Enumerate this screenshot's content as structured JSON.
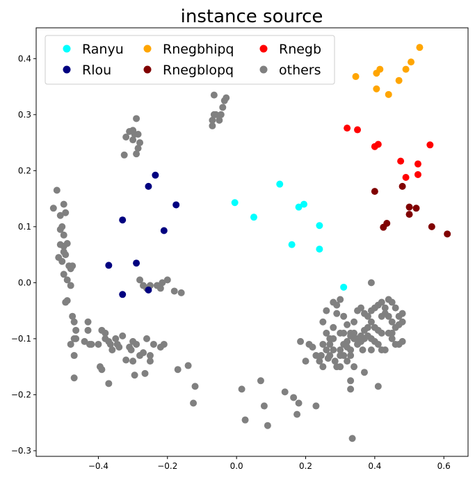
{
  "chart_data": {
    "type": "scatter",
    "title": "instance source",
    "xlabel": "",
    "ylabel": "",
    "xlim": [
      -0.58,
      0.67
    ],
    "ylim": [
      -0.31,
      0.455
    ],
    "xticks": [
      -0.4,
      -0.2,
      0.0,
      0.2,
      0.4,
      0.6
    ],
    "xtick_labels": [
      "−0.4",
      "−0.2",
      "0.0",
      "0.2",
      "0.4",
      "0.6"
    ],
    "yticks": [
      -0.3,
      -0.2,
      -0.1,
      0.0,
      0.1,
      0.2,
      0.3,
      0.4
    ],
    "ytick_labels": [
      "−0.3",
      "−0.2",
      "−0.1",
      "0.0",
      "0.1",
      "0.2",
      "0.3",
      "0.4"
    ],
    "grid": false,
    "legend_position": "top-left",
    "legend_columns": 3,
    "series": [
      {
        "name": "others",
        "color": "#808080",
        "points": [
          [
            -0.53,
            0.133
          ],
          [
            -0.52,
            0.165
          ],
          [
            -0.51,
            0.12
          ],
          [
            -0.505,
            0.1
          ],
          [
            -0.5,
            0.14
          ],
          [
            -0.495,
            0.125
          ],
          [
            -0.51,
            0.095
          ],
          [
            -0.5,
            0.085
          ],
          [
            -0.51,
            0.068
          ],
          [
            -0.5,
            0.065
          ],
          [
            -0.49,
            0.07
          ],
          [
            -0.515,
            0.045
          ],
          [
            -0.505,
            0.038
          ],
          [
            -0.5,
            0.055
          ],
          [
            -0.495,
            0.05
          ],
          [
            -0.485,
            0.03
          ],
          [
            -0.48,
            0.025
          ],
          [
            -0.475,
            0.03
          ],
          [
            -0.5,
            0.015
          ],
          [
            -0.49,
            0.005
          ],
          [
            -0.48,
            -0.005
          ],
          [
            -0.495,
            -0.035
          ],
          [
            -0.49,
            -0.032
          ],
          [
            -0.475,
            -0.06
          ],
          [
            -0.47,
            -0.07
          ],
          [
            -0.465,
            -0.085
          ],
          [
            -0.47,
            -0.1
          ],
          [
            -0.48,
            -0.11
          ],
          [
            -0.47,
            -0.13
          ],
          [
            -0.465,
            -0.1
          ],
          [
            -0.43,
            -0.07
          ],
          [
            -0.43,
            -0.085
          ],
          [
            -0.44,
            -0.105
          ],
          [
            -0.425,
            -0.11
          ],
          [
            -0.42,
            -0.11
          ],
          [
            -0.4,
            -0.11
          ],
          [
            -0.39,
            -0.085
          ],
          [
            -0.38,
            -0.09
          ],
          [
            -0.38,
            -0.1
          ],
          [
            -0.37,
            -0.105
          ],
          [
            -0.365,
            -0.11
          ],
          [
            -0.36,
            -0.12
          ],
          [
            -0.35,
            -0.1
          ],
          [
            -0.345,
            -0.11
          ],
          [
            -0.34,
            -0.115
          ],
          [
            -0.33,
            -0.095
          ],
          [
            -0.31,
            -0.115
          ],
          [
            -0.305,
            -0.12
          ],
          [
            -0.3,
            -0.105
          ],
          [
            -0.29,
            -0.11
          ],
          [
            -0.28,
            -0.13
          ],
          [
            -0.27,
            -0.125
          ],
          [
            -0.26,
            -0.1
          ],
          [
            -0.25,
            -0.13
          ],
          [
            -0.24,
            -0.11
          ],
          [
            -0.22,
            -0.115
          ],
          [
            -0.21,
            -0.11
          ],
          [
            -0.32,
            -0.138
          ],
          [
            -0.3,
            -0.14
          ],
          [
            -0.25,
            -0.14
          ],
          [
            -0.395,
            -0.15
          ],
          [
            -0.39,
            -0.155
          ],
          [
            -0.37,
            -0.18
          ],
          [
            -0.265,
            -0.162
          ],
          [
            -0.295,
            -0.165
          ],
          [
            -0.47,
            -0.17
          ],
          [
            -0.325,
            0.228
          ],
          [
            -0.29,
            0.23
          ],
          [
            -0.3,
            0.255
          ],
          [
            -0.295,
            0.265
          ],
          [
            -0.285,
            0.265
          ],
          [
            -0.3,
            0.272
          ],
          [
            -0.31,
            0.27
          ],
          [
            -0.32,
            0.26
          ],
          [
            -0.28,
            0.25
          ],
          [
            -0.285,
            0.24
          ],
          [
            -0.29,
            0.293
          ],
          [
            -0.28,
            0.005
          ],
          [
            -0.27,
            -0.005
          ],
          [
            -0.26,
            -0.01
          ],
          [
            -0.25,
            -0.005
          ],
          [
            -0.23,
            -0.005
          ],
          [
            -0.22,
            -0.01
          ],
          [
            -0.215,
            0.0
          ],
          [
            -0.2,
            0.005
          ],
          [
            -0.18,
            -0.015
          ],
          [
            -0.16,
            -0.018
          ],
          [
            -0.17,
            -0.155
          ],
          [
            -0.14,
            -0.148
          ],
          [
            -0.12,
            -0.185
          ],
          [
            -0.125,
            -0.215
          ],
          [
            -0.07,
            0.29
          ],
          [
            -0.065,
            0.3
          ],
          [
            -0.07,
            0.28
          ],
          [
            -0.06,
            0.3
          ],
          [
            -0.045,
            0.3
          ],
          [
            -0.04,
            0.313
          ],
          [
            -0.035,
            0.325
          ],
          [
            -0.03,
            0.33
          ],
          [
            -0.05,
            0.29
          ],
          [
            -0.065,
            0.335
          ],
          [
            0.015,
            -0.19
          ],
          [
            0.025,
            -0.245
          ],
          [
            0.07,
            -0.175
          ],
          [
            0.08,
            -0.22
          ],
          [
            0.09,
            -0.255
          ],
          [
            0.14,
            -0.195
          ],
          [
            0.165,
            -0.205
          ],
          [
            0.18,
            -0.215
          ],
          [
            0.175,
            -0.235
          ],
          [
            0.23,
            -0.22
          ],
          [
            0.185,
            -0.105
          ],
          [
            0.21,
            -0.11
          ],
          [
            0.22,
            -0.115
          ],
          [
            0.2,
            -0.14
          ],
          [
            0.23,
            -0.13
          ],
          [
            0.245,
            -0.13
          ],
          [
            0.25,
            -0.11
          ],
          [
            0.24,
            -0.14
          ],
          [
            0.25,
            -0.15
          ],
          [
            0.26,
            -0.12
          ],
          [
            0.27,
            -0.11
          ],
          [
            0.27,
            -0.13
          ],
          [
            0.28,
            -0.1
          ],
          [
            0.285,
            -0.14
          ],
          [
            0.29,
            -0.15
          ],
          [
            0.3,
            -0.12
          ],
          [
            0.31,
            -0.09
          ],
          [
            0.3,
            -0.13
          ],
          [
            0.31,
            -0.13
          ],
          [
            0.3,
            -0.15
          ],
          [
            0.32,
            -0.14
          ],
          [
            0.33,
            -0.13
          ],
          [
            0.32,
            -0.115
          ],
          [
            0.33,
            -0.12
          ],
          [
            0.34,
            -0.09
          ],
          [
            0.35,
            -0.11
          ],
          [
            0.36,
            -0.095
          ],
          [
            0.37,
            -0.085
          ],
          [
            0.38,
            -0.08
          ],
          [
            0.39,
            -0.07
          ],
          [
            0.4,
            -0.08
          ],
          [
            0.41,
            -0.085
          ],
          [
            0.42,
            -0.06
          ],
          [
            0.43,
            -0.055
          ],
          [
            0.42,
            -0.09
          ],
          [
            0.44,
            -0.09
          ],
          [
            0.45,
            -0.1
          ],
          [
            0.46,
            -0.11
          ],
          [
            0.43,
            -0.12
          ],
          [
            0.41,
            -0.11
          ],
          [
            0.4,
            -0.105
          ],
          [
            0.39,
            -0.1
          ],
          [
            0.38,
            -0.095
          ],
          [
            0.37,
            -0.1
          ],
          [
            0.36,
            -0.105
          ],
          [
            0.35,
            -0.1
          ],
          [
            0.34,
            -0.1
          ],
          [
            0.33,
            -0.09
          ],
          [
            0.32,
            -0.075
          ],
          [
            0.31,
            -0.06
          ],
          [
            0.29,
            -0.04
          ],
          [
            0.28,
            -0.035
          ],
          [
            0.29,
            -0.055
          ],
          [
            0.28,
            -0.08
          ],
          [
            0.3,
            -0.09
          ],
          [
            0.31,
            -0.11
          ],
          [
            0.32,
            -0.105
          ],
          [
            0.33,
            -0.095
          ],
          [
            0.34,
            -0.07
          ],
          [
            0.35,
            -0.05
          ],
          [
            0.36,
            -0.045
          ],
          [
            0.37,
            -0.055
          ],
          [
            0.38,
            -0.06
          ],
          [
            0.39,
            -0.05
          ],
          [
            0.4,
            -0.045
          ],
          [
            0.41,
            -0.04
          ],
          [
            0.42,
            -0.035
          ],
          [
            0.43,
            -0.045
          ],
          [
            0.44,
            -0.06
          ],
          [
            0.45,
            -0.07
          ],
          [
            0.46,
            -0.08
          ],
          [
            0.47,
            -0.075
          ],
          [
            0.48,
            -0.07
          ],
          [
            0.47,
            -0.06
          ],
          [
            0.48,
            -0.055
          ],
          [
            0.44,
            -0.03
          ],
          [
            0.45,
            -0.035
          ],
          [
            0.46,
            -0.045
          ],
          [
            0.39,
            0.0
          ],
          [
            0.3,
            -0.03
          ],
          [
            0.26,
            -0.05
          ],
          [
            0.25,
            -0.07
          ],
          [
            0.26,
            -0.09
          ],
          [
            0.27,
            -0.1
          ],
          [
            0.42,
            -0.12
          ],
          [
            0.37,
            -0.16
          ],
          [
            0.33,
            -0.175
          ],
          [
            0.33,
            -0.19
          ],
          [
            0.34,
            -0.15
          ],
          [
            0.28,
            -0.12
          ],
          [
            0.265,
            -0.135
          ],
          [
            0.47,
            -0.11
          ],
          [
            0.48,
            -0.105
          ],
          [
            0.41,
            -0.185
          ],
          [
            0.335,
            -0.278
          ],
          [
            0.45,
            -0.09
          ],
          [
            0.39,
            -0.12
          ],
          [
            0.365,
            -0.12
          ]
        ]
      },
      {
        "name": "Ranyu",
        "color": "#00ffff",
        "points": [
          [
            -0.005,
            0.143
          ],
          [
            0.05,
            0.117
          ],
          [
            0.125,
            0.176
          ],
          [
            0.18,
            0.135
          ],
          [
            0.195,
            0.14
          ],
          [
            0.24,
            0.102
          ],
          [
            0.16,
            0.068
          ],
          [
            0.24,
            0.06
          ],
          [
            0.31,
            -0.008
          ]
        ]
      },
      {
        "name": "Rlou",
        "color": "#000080",
        "points": [
          [
            -0.235,
            0.192
          ],
          [
            -0.255,
            0.172
          ],
          [
            -0.175,
            0.139
          ],
          [
            -0.33,
            0.112
          ],
          [
            -0.21,
            0.093
          ],
          [
            -0.37,
            0.031
          ],
          [
            -0.29,
            0.035
          ],
          [
            -0.33,
            -0.021
          ],
          [
            -0.255,
            -0.013
          ]
        ]
      },
      {
        "name": "Rnegbhipq",
        "color": "#ffa500",
        "points": [
          [
            0.53,
            0.42
          ],
          [
            0.505,
            0.394
          ],
          [
            0.49,
            0.381
          ],
          [
            0.415,
            0.381
          ],
          [
            0.405,
            0.374
          ],
          [
            0.345,
            0.368
          ],
          [
            0.47,
            0.361
          ],
          [
            0.405,
            0.346
          ],
          [
            0.44,
            0.336
          ]
        ]
      },
      {
        "name": "Rnegblopq",
        "color": "#800000",
        "points": [
          [
            0.4,
            0.163
          ],
          [
            0.48,
            0.172
          ],
          [
            0.5,
            0.135
          ],
          [
            0.52,
            0.133
          ],
          [
            0.5,
            0.122
          ],
          [
            0.435,
            0.106
          ],
          [
            0.425,
            0.099
          ],
          [
            0.565,
            0.1
          ],
          [
            0.61,
            0.087
          ]
        ]
      },
      {
        "name": "Rnegb",
        "color": "#ff0000",
        "points": [
          [
            0.32,
            0.276
          ],
          [
            0.35,
            0.273
          ],
          [
            0.41,
            0.247
          ],
          [
            0.4,
            0.243
          ],
          [
            0.56,
            0.246
          ],
          [
            0.475,
            0.217
          ],
          [
            0.525,
            0.212
          ],
          [
            0.525,
            0.193
          ],
          [
            0.49,
            0.188
          ]
        ]
      }
    ],
    "legend": [
      {
        "name": "Ranyu",
        "color": "#00ffff"
      },
      {
        "name": "Rnegbhipq",
        "color": "#ffa500"
      },
      {
        "name": "Rnegb",
        "color": "#ff0000"
      },
      {
        "name": "Rlou",
        "color": "#000080"
      },
      {
        "name": "Rnegblopq",
        "color": "#800000"
      },
      {
        "name": "others",
        "color": "#808080"
      }
    ]
  }
}
